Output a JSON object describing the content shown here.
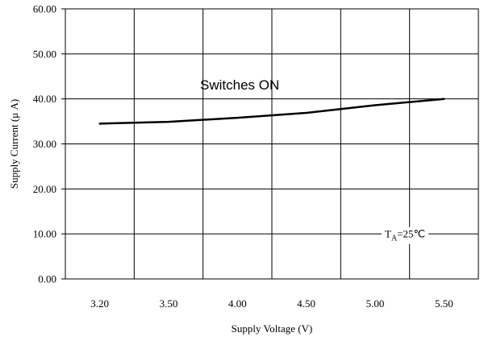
{
  "chart_data": {
    "type": "line",
    "title": "",
    "xlabel": "Supply Voltage (V)",
    "ylabel": "Supply Current (μ A)",
    "x_tick_labels": [
      "3.20",
      "3.50",
      "4.00",
      "4.50",
      "5.00",
      "5.50"
    ],
    "x_tick_positions": [
      3.2,
      3.5,
      4.0,
      4.5,
      5.0,
      5.5
    ],
    "y_tick_labels": [
      "0.00",
      "10.00",
      "20.00",
      "30.00",
      "40.00",
      "50.00",
      "60.00"
    ],
    "ylim": [
      0,
      60
    ],
    "grid": true,
    "series": [
      {
        "name": "Switches ON",
        "x": [
          3.2,
          3.5,
          4.0,
          4.5,
          5.0,
          5.5
        ],
        "y": [
          34.5,
          34.9,
          35.8,
          36.9,
          38.6,
          40.0
        ]
      }
    ],
    "annotations": {
      "series_label": "Switches ON",
      "condition_main": "T",
      "condition_sub": "A",
      "condition_rest": "=25℃"
    },
    "colors": {
      "line": "#000000",
      "grid": "#000000"
    }
  }
}
